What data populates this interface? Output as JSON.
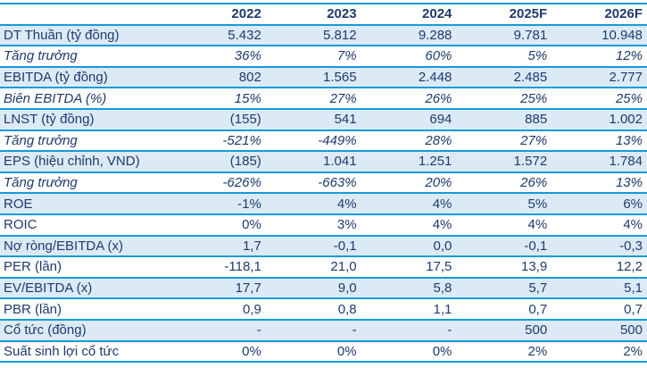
{
  "chart_data": {
    "type": "table",
    "columns": [
      "",
      "2022",
      "2023",
      "2024",
      "2025F",
      "2026F"
    ],
    "rows": [
      {
        "label": "DT Thuần (tỷ đồng)",
        "italic": false,
        "values": [
          "5.432",
          "5.812",
          "9.288",
          "9.781",
          "10.948"
        ]
      },
      {
        "label": "Tăng trưởng",
        "italic": true,
        "values": [
          "36%",
          "7%",
          "60%",
          "5%",
          "12%"
        ]
      },
      {
        "label": "EBITDA (tỷ đồng)",
        "italic": false,
        "values": [
          "802",
          "1.565",
          "2.448",
          "2.485",
          "2.777"
        ]
      },
      {
        "label": "Biên EBITDA (%)",
        "italic": true,
        "values": [
          "15%",
          "27%",
          "26%",
          "25%",
          "25%"
        ]
      },
      {
        "label": "LNST (tỷ đồng)",
        "italic": false,
        "values": [
          "(155)",
          "541",
          "694",
          "885",
          "1.002"
        ]
      },
      {
        "label": "Tăng trưởng",
        "italic": true,
        "values": [
          "-521%",
          "-449%",
          "28%",
          "27%",
          "13%"
        ]
      },
      {
        "label": "EPS (hiệu chỉnh, VND)",
        "italic": false,
        "values": [
          "(185)",
          "1.041",
          "1.251",
          "1.572",
          "1.784"
        ]
      },
      {
        "label": "Tăng trưởng",
        "italic": true,
        "values": [
          "-626%",
          "-663%",
          "20%",
          "26%",
          "13%"
        ]
      },
      {
        "label": "ROE",
        "italic": false,
        "values": [
          "-1%",
          "4%",
          "4%",
          "5%",
          "6%"
        ]
      },
      {
        "label": "ROIC",
        "italic": false,
        "values": [
          "0%",
          "3%",
          "4%",
          "4%",
          "4%"
        ]
      },
      {
        "label": "Nợ ròng/EBITDA (x)",
        "italic": false,
        "values": [
          "1,7",
          "-0,1",
          "0,0",
          "-0,1",
          "-0,3"
        ]
      },
      {
        "label": "PER (lần)",
        "italic": false,
        "values": [
          "-118,1",
          "21,0",
          "17,5",
          "13,9",
          "12,2"
        ]
      },
      {
        "label": "EV/EBITDA (x)",
        "italic": false,
        "values": [
          "17,7",
          "9,0",
          "5,8",
          "5,7",
          "5,1"
        ]
      },
      {
        "label": "PBR (lần)",
        "italic": false,
        "values": [
          "0,9",
          "0,8",
          "1,1",
          "0,7",
          "0,7"
        ]
      },
      {
        "label": "Cổ tức (đồng)",
        "italic": false,
        "values": [
          "-",
          "-",
          "-",
          "500",
          "500"
        ]
      },
      {
        "label": "Suất sinh lợi cổ tức",
        "italic": false,
        "values": [
          "0%",
          "0%",
          "0%",
          "2%",
          "2%"
        ]
      }
    ],
    "layout_hints": {
      "shaded_row_indices": [
        0,
        2,
        4,
        6,
        8,
        10,
        12,
        14
      ],
      "grid": "horizontal-rules-only",
      "value_alignment": "right",
      "label_alignment": "left"
    }
  },
  "colors": {
    "text": "#1e3a6e",
    "border": "#129cd8",
    "row_shade": "#dceaf6",
    "background": "#ffffff"
  }
}
